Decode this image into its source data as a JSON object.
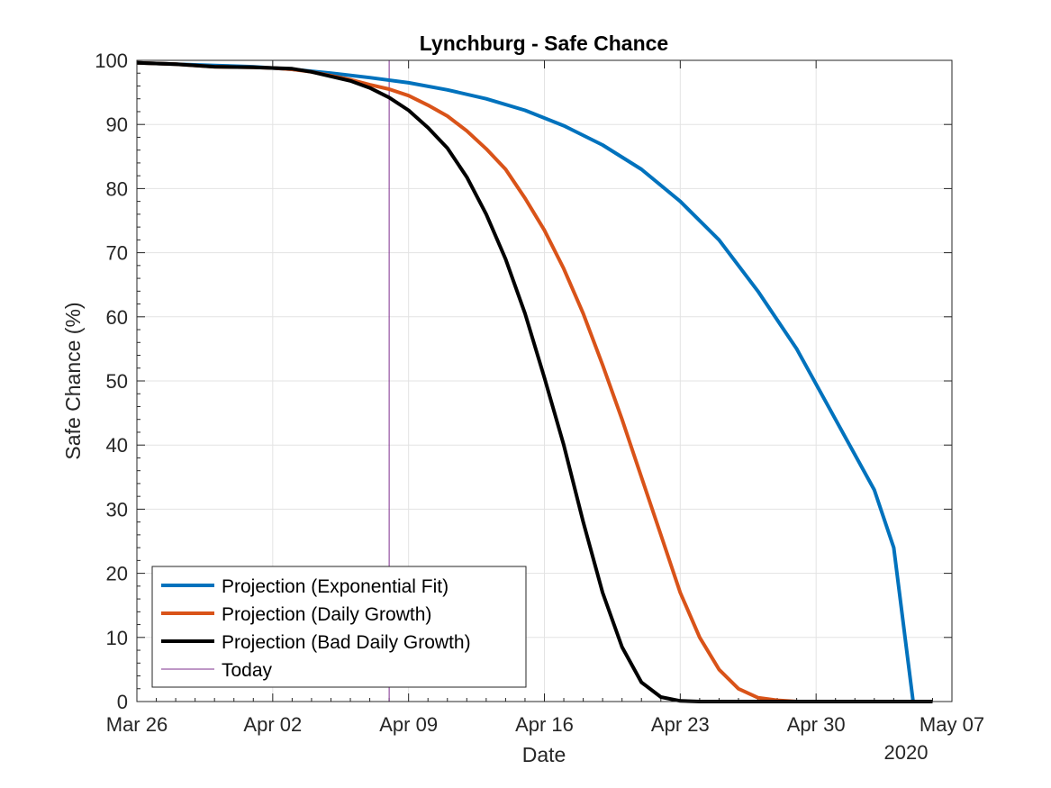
{
  "chart_data": {
    "type": "line",
    "title": "Lynchburg - Safe Chance",
    "xlabel": "Date",
    "ylabel": "Safe Chance (%)",
    "x_unit": "date",
    "xlim": [
      "2020-03-26",
      "2020-05-07"
    ],
    "ylim": [
      0,
      100
    ],
    "x_ticks": [
      "2020-03-26",
      "2020-04-02",
      "2020-04-09",
      "2020-04-16",
      "2020-04-23",
      "2020-04-30",
      "2020-05-07"
    ],
    "x_tick_labels": [
      "Mar 26",
      "Apr 02",
      "Apr 09",
      "Apr 16",
      "Apr 23",
      "Apr 30",
      "May 07"
    ],
    "x_secondary_label": "2020",
    "y_ticks": [
      0,
      10,
      20,
      30,
      40,
      50,
      60,
      70,
      80,
      90,
      100
    ],
    "y_tick_labels": [
      "0",
      "10",
      "20",
      "30",
      "40",
      "50",
      "60",
      "70",
      "80",
      "90",
      "100"
    ],
    "grid": true,
    "legend_position": "bottom-left",
    "series": [
      {
        "name": "Projection (Exponential Fit)",
        "color": "#0072BD",
        "points": [
          [
            "2020-03-26",
            99.6
          ],
          [
            "2020-03-28",
            99.4
          ],
          [
            "2020-03-30",
            99.2
          ],
          [
            "2020-04-01",
            99.0
          ],
          [
            "2020-04-03",
            98.6
          ],
          [
            "2020-04-05",
            98.0
          ],
          [
            "2020-04-07",
            97.3
          ],
          [
            "2020-04-09",
            96.5
          ],
          [
            "2020-04-11",
            95.4
          ],
          [
            "2020-04-13",
            94.0
          ],
          [
            "2020-04-15",
            92.2
          ],
          [
            "2020-04-17",
            89.8
          ],
          [
            "2020-04-19",
            86.8
          ],
          [
            "2020-04-21",
            83.0
          ],
          [
            "2020-04-23",
            78.0
          ],
          [
            "2020-04-25",
            72.0
          ],
          [
            "2020-04-27",
            64.0
          ],
          [
            "2020-04-29",
            55.0
          ],
          [
            "2020-05-01",
            44.0
          ],
          [
            "2020-05-03",
            33.0
          ],
          [
            "2020-05-04",
            24.0
          ],
          [
            "2020-05-05",
            0.0
          ],
          [
            "2020-05-06",
            0.0
          ]
        ]
      },
      {
        "name": "Projection (Daily Growth)",
        "color": "#D95319",
        "points": [
          [
            "2020-03-26",
            99.6
          ],
          [
            "2020-03-28",
            99.4
          ],
          [
            "2020-03-30",
            99.0
          ],
          [
            "2020-04-01",
            98.9
          ],
          [
            "2020-04-02",
            98.8
          ],
          [
            "2020-04-03",
            98.6
          ],
          [
            "2020-04-04",
            98.2
          ],
          [
            "2020-04-05",
            97.6
          ],
          [
            "2020-04-06",
            97.0
          ],
          [
            "2020-04-07",
            96.2
          ],
          [
            "2020-04-08",
            95.5
          ],
          [
            "2020-04-09",
            94.5
          ],
          [
            "2020-04-10",
            93.0
          ],
          [
            "2020-04-11",
            91.3
          ],
          [
            "2020-04-12",
            89.0
          ],
          [
            "2020-04-13",
            86.2
          ],
          [
            "2020-04-14",
            83.0
          ],
          [
            "2020-04-15",
            78.5
          ],
          [
            "2020-04-16",
            73.5
          ],
          [
            "2020-04-17",
            67.5
          ],
          [
            "2020-04-18",
            60.5
          ],
          [
            "2020-04-19",
            52.5
          ],
          [
            "2020-04-20",
            44.0
          ],
          [
            "2020-04-21",
            35.0
          ],
          [
            "2020-04-22",
            26.0
          ],
          [
            "2020-04-23",
            17.0
          ],
          [
            "2020-04-24",
            10.0
          ],
          [
            "2020-04-25",
            5.0
          ],
          [
            "2020-04-26",
            2.0
          ],
          [
            "2020-04-27",
            0.6
          ],
          [
            "2020-04-28",
            0.2
          ],
          [
            "2020-04-29",
            0.0
          ],
          [
            "2020-05-06",
            0.0
          ]
        ]
      },
      {
        "name": "Projection (Bad Daily Growth)",
        "color": "#000000",
        "points": [
          [
            "2020-03-26",
            99.6
          ],
          [
            "2020-03-28",
            99.4
          ],
          [
            "2020-03-30",
            99.0
          ],
          [
            "2020-04-01",
            98.9
          ],
          [
            "2020-04-02",
            98.8
          ],
          [
            "2020-04-03",
            98.7
          ],
          [
            "2020-04-04",
            98.2
          ],
          [
            "2020-04-05",
            97.5
          ],
          [
            "2020-04-06",
            96.8
          ],
          [
            "2020-04-07",
            95.7
          ],
          [
            "2020-04-08",
            94.2
          ],
          [
            "2020-04-09",
            92.2
          ],
          [
            "2020-04-10",
            89.5
          ],
          [
            "2020-04-11",
            86.3
          ],
          [
            "2020-04-12",
            81.8
          ],
          [
            "2020-04-13",
            76.0
          ],
          [
            "2020-04-14",
            69.0
          ],
          [
            "2020-04-15",
            60.5
          ],
          [
            "2020-04-16",
            50.5
          ],
          [
            "2020-04-17",
            40.0
          ],
          [
            "2020-04-18",
            28.0
          ],
          [
            "2020-04-19",
            17.0
          ],
          [
            "2020-04-20",
            8.5
          ],
          [
            "2020-04-21",
            3.0
          ],
          [
            "2020-04-22",
            0.7
          ],
          [
            "2020-04-23",
            0.1
          ],
          [
            "2020-04-24",
            0.0
          ],
          [
            "2020-05-06",
            0.0
          ]
        ]
      },
      {
        "name": "Today",
        "color": "#7E2F8E",
        "vertical_line_at": "2020-04-08"
      }
    ]
  }
}
